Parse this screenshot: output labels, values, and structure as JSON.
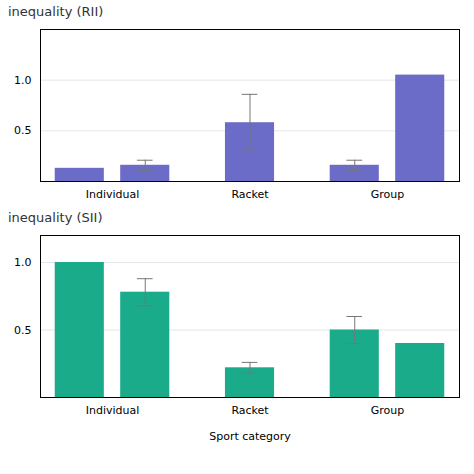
{
  "chart_data": [
    {
      "type": "bar",
      "title": "inequality (RII)",
      "categories": [
        "Individual",
        "Individual",
        "Racket",
        "Group",
        "Group"
      ],
      "values": [
        0.13,
        0.16,
        0.58,
        0.16,
        1.05
      ],
      "error_low": [
        0.0,
        0.05,
        0.28,
        0.05,
        0.0
      ],
      "error_high": [
        0.0,
        0.05,
        0.28,
        0.05,
        0.0
      ],
      "color": "#6B6BC8",
      "ylim": [
        0,
        1.5
      ],
      "yticks": [
        0.5,
        {
          "value": 1.0,
          "label": "1.0"
        }
      ],
      "grid": true
    },
    {
      "type": "bar",
      "title": "inequality (SII)",
      "xlabel": "Sport category",
      "categories": [
        "Individual",
        "Individual",
        "Racket",
        "Group",
        "Group"
      ],
      "values": [
        1.0,
        0.78,
        0.22,
        0.5,
        0.4
      ],
      "error_low": [
        0.0,
        0.1,
        0.04,
        0.1,
        0.0
      ],
      "error_high": [
        0.0,
        0.1,
        0.04,
        0.1,
        0.0
      ],
      "color": "#1aab8a",
      "ylim": [
        0,
        1.2
      ],
      "yticks": [
        0.5,
        {
          "value": 1.0,
          "label": "1.0"
        }
      ],
      "grid": true
    }
  ]
}
